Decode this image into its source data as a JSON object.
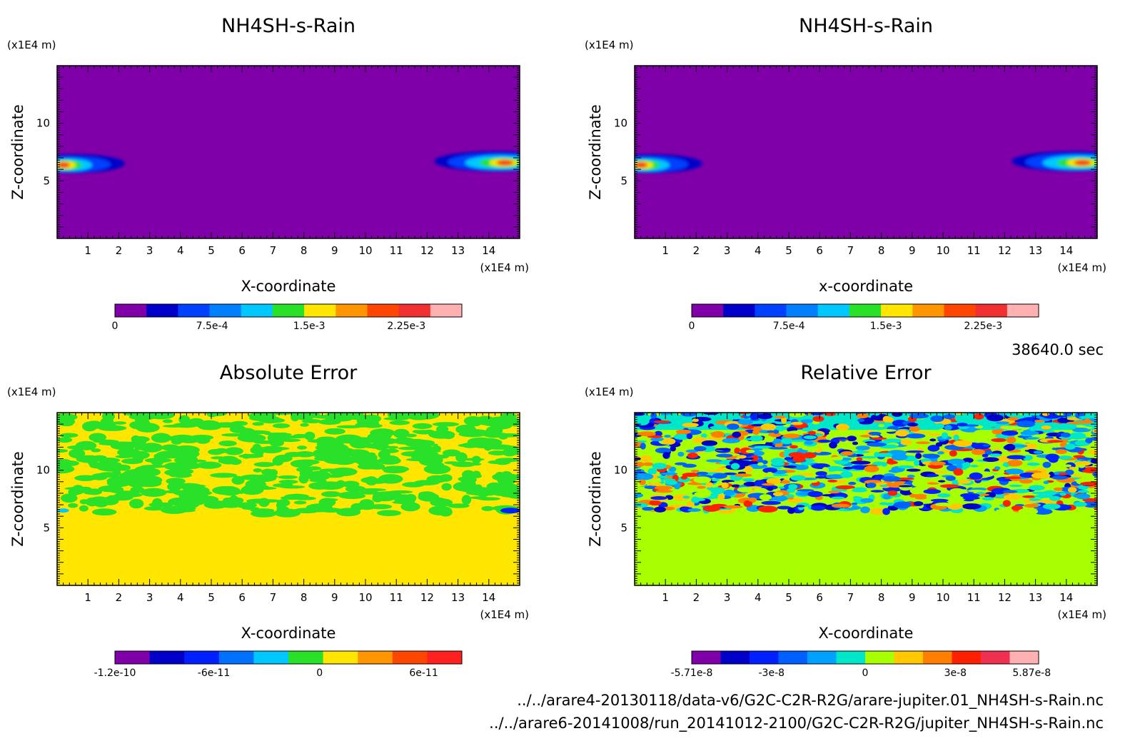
{
  "time_label": "38640.0 sec",
  "file_paths": [
    "../../arare4-20130118/data-v6/G2C-C2R-R2G/arare-jupiter.01_NH4SH-s-Rain.nc",
    "../../arare6-20141008/run_20141012-2100/G2C-C2R-R2G/jupiter_NH4SH-s-Rain.nc"
  ],
  "chart_data": [
    {
      "type": "heatmap",
      "title": "NH4SH-s-Rain",
      "xlabel": "X-coordinate",
      "ylabel": "Z-coordinate",
      "x_unit": "(x1E4 m)",
      "y_unit": "(x1E4 m)",
      "xlim": [
        0,
        15
      ],
      "ylim": [
        0,
        15
      ],
      "x_ticks": [
        "1",
        "2",
        "3",
        "4",
        "5",
        "6",
        "7",
        "8",
        "9",
        "10",
        "11",
        "12",
        "13",
        "14"
      ],
      "y_ticks": [
        "5",
        "10"
      ],
      "field": "plume",
      "background_color": "#7f00a8",
      "colorbar": {
        "colors": [
          "#7f00a8",
          "#0000c8",
          "#0040ff",
          "#0080ff",
          "#00c8ff",
          "#28e128",
          "#ffe600",
          "#ff9600",
          "#ff4600",
          "#f03030",
          "#ffb0b0"
        ],
        "labels": [
          "0",
          "7.5e-4",
          "1.5e-3",
          "2.25e-3"
        ],
        "label_positions": [
          0,
          0.28,
          0.56,
          0.84
        ]
      }
    },
    {
      "type": "heatmap",
      "title": "NH4SH-s-Rain",
      "xlabel": "x-coordinate",
      "ylabel": "Z-coordinate",
      "x_unit": "(x1E4 m)",
      "y_unit": "(x1E4 m)",
      "xlim": [
        0,
        15
      ],
      "ylim": [
        0,
        15
      ],
      "x_ticks": [
        "1",
        "2",
        "3",
        "4",
        "5",
        "6",
        "7",
        "8",
        "9",
        "10",
        "11",
        "12",
        "13",
        "14"
      ],
      "y_ticks": [
        "5",
        "10"
      ],
      "field": "plume",
      "background_color": "#7f00a8",
      "colorbar": {
        "colors": [
          "#7f00a8",
          "#0000c8",
          "#0040ff",
          "#0080ff",
          "#00c8ff",
          "#28e128",
          "#ffe600",
          "#ff9600",
          "#ff4600",
          "#f03030",
          "#ffb0b0"
        ],
        "labels": [
          "0",
          "7.5e-4",
          "1.5e-3",
          "2.25e-3"
        ],
        "label_positions": [
          0,
          0.28,
          0.56,
          0.84
        ]
      }
    },
    {
      "type": "heatmap",
      "title": "Absolute Error",
      "xlabel": "X-coordinate",
      "ylabel": "Z-coordinate",
      "x_unit": "(x1E4 m)",
      "y_unit": "(x1E4 m)",
      "xlim": [
        0,
        15
      ],
      "ylim": [
        0,
        15
      ],
      "x_ticks": [
        "1",
        "2",
        "3",
        "4",
        "5",
        "6",
        "7",
        "8",
        "9",
        "10",
        "11",
        "12",
        "13",
        "14"
      ],
      "y_ticks": [
        "5",
        "10"
      ],
      "field": "abs_noise",
      "background_color": "#ffe600",
      "colorbar": {
        "colors": [
          "#7f00a8",
          "#0000c8",
          "#0020ff",
          "#0070ff",
          "#00c8ff",
          "#28e128",
          "#ffe600",
          "#ff9600",
          "#ff4600",
          "#ff2020"
        ],
        "labels": [
          "-1.2e-10",
          "-6e-11",
          "0",
          "6e-11"
        ],
        "label_positions": [
          0,
          0.285,
          0.59,
          0.89
        ]
      }
    },
    {
      "type": "heatmap",
      "title": "Relative Error",
      "xlabel": "X-coordinate",
      "ylabel": "Z-coordinate",
      "x_unit": "(x1E4 m)",
      "y_unit": "(x1E4 m)",
      "xlim": [
        0,
        15
      ],
      "ylim": [
        0,
        15
      ],
      "x_ticks": [
        "1",
        "2",
        "3",
        "4",
        "5",
        "6",
        "7",
        "8",
        "9",
        "10",
        "11",
        "12",
        "13",
        "14"
      ],
      "y_ticks": [
        "5",
        "10"
      ],
      "field": "rel_noise",
      "background_color": "#a8ff00",
      "colorbar": {
        "colors": [
          "#7f00a8",
          "#0000c8",
          "#0020ff",
          "#0060ff",
          "#00a0ff",
          "#00e6c8",
          "#a8ff00",
          "#ffc800",
          "#ff8000",
          "#ff2000",
          "#f03050",
          "#ffb0b0"
        ],
        "labels": [
          "-5.71e-8",
          "-3e-8",
          "0",
          "3e-8",
          "5.87e-8"
        ],
        "label_positions": [
          0,
          0.23,
          0.5,
          0.76,
          0.98
        ]
      }
    }
  ]
}
